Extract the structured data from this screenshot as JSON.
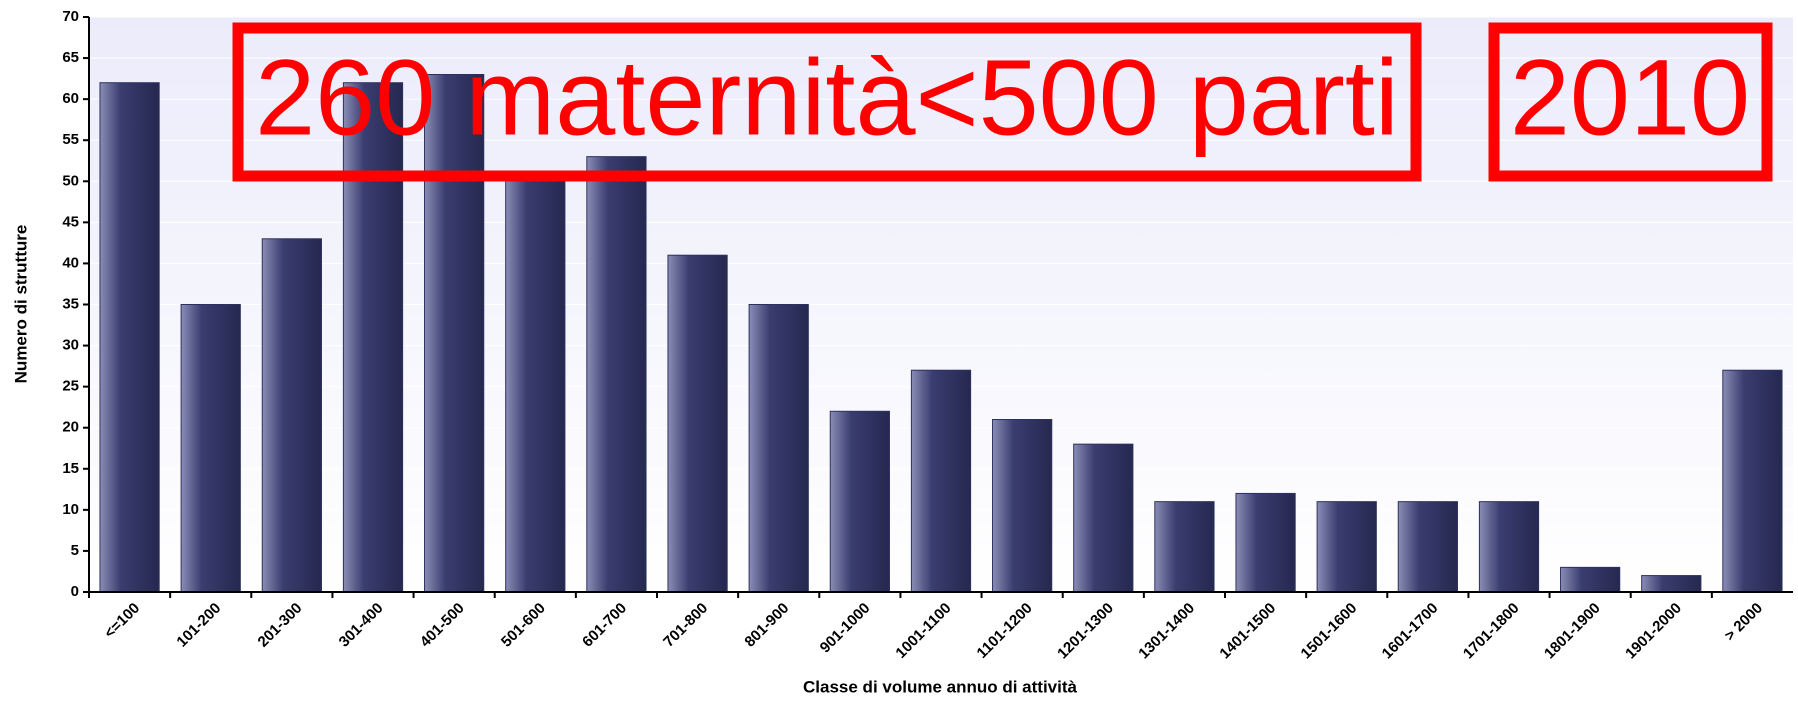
{
  "chart_data": {
    "type": "bar",
    "categories": [
      "<=100",
      "101-200",
      "201-300",
      "301-400",
      "401-500",
      "501-600",
      "601-700",
      "701-800",
      "801-900",
      "901-1000",
      "1001-1100",
      "1101-1200",
      "1201-1300",
      "1301-1400",
      "1401-1500",
      "1501-1600",
      "1601-1700",
      "1701-1800",
      "1801-1900",
      "1901-2000",
      "> 2000"
    ],
    "values": [
      62,
      35,
      43,
      62,
      63,
      51,
      53,
      41,
      35,
      22,
      27,
      21,
      18,
      11,
      12,
      11,
      11,
      11,
      3,
      2,
      27
    ],
    "color": "#2e3160",
    "ylim": [
      0,
      70
    ],
    "yticks": [
      0,
      5,
      10,
      15,
      20,
      25,
      30,
      35,
      40,
      45,
      50,
      55,
      60,
      65,
      70
    ],
    "y_label": "Numero di strutture",
    "x_label": "Classe di volume annuo di attività",
    "annotations": [
      "260 maternità<500 parti",
      "2010"
    ]
  }
}
